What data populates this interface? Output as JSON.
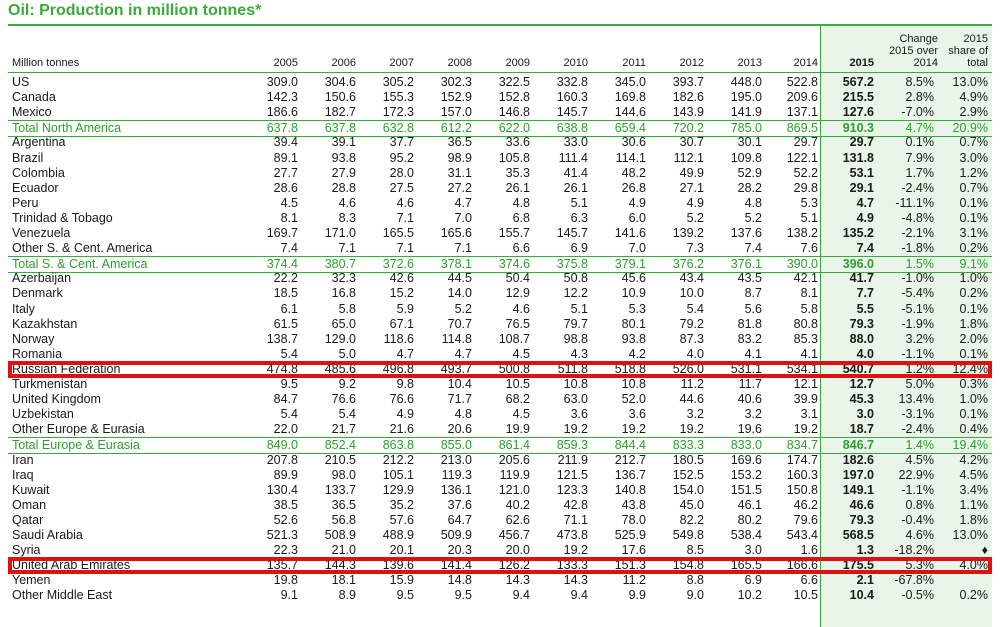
{
  "title": "Oil: Production in million tonnes*",
  "header": {
    "unit": "Million tonnes",
    "years": [
      "2005",
      "2006",
      "2007",
      "2008",
      "2009",
      "2010",
      "2011",
      "2012",
      "2013",
      "2014"
    ],
    "col_2015": "2015",
    "change_label": "Change 2015 over 2014",
    "share_label": "2015 share of total"
  },
  "rows": [
    {
      "name": "US",
      "values": [
        "309.0",
        "304.6",
        "305.2",
        "302.3",
        "322.5",
        "332.8",
        "345.0",
        "393.7",
        "448.0",
        "522.8"
      ],
      "v2015": "567.2",
      "change": "8.5%",
      "share": "13.0%"
    },
    {
      "name": "Canada",
      "values": [
        "142.3",
        "150.6",
        "155.3",
        "152.9",
        "152.8",
        "160.3",
        "169.8",
        "182.6",
        "195.0",
        "209.6"
      ],
      "v2015": "215.5",
      "change": "2.8%",
      "share": "4.9%"
    },
    {
      "name": "Mexico",
      "values": [
        "186.6",
        "182.7",
        "172.3",
        "157.0",
        "146.8",
        "145.7",
        "144.6",
        "143.9",
        "141.9",
        "137.1"
      ],
      "v2015": "127.6",
      "change": "-7.0%",
      "share": "2.9%"
    },
    {
      "name": "Total North America",
      "total": true,
      "values": [
        "637.8",
        "637.8",
        "632.8",
        "612.2",
        "622.0",
        "638.8",
        "659.4",
        "720.2",
        "785.0",
        "869.5"
      ],
      "v2015": "910.3",
      "change": "4.7%",
      "share": "20.9%"
    },
    {
      "name": "Argentina",
      "values": [
        "39.4",
        "39.1",
        "37.7",
        "36.5",
        "33.6",
        "33.0",
        "30.6",
        "30.7",
        "30.1",
        "29.7"
      ],
      "v2015": "29.7",
      "change": "0.1%",
      "share": "0.7%"
    },
    {
      "name": "Brazil",
      "values": [
        "89.1",
        "93.8",
        "95.2",
        "98.9",
        "105.8",
        "111.4",
        "114.1",
        "112.1",
        "109.8",
        "122.1"
      ],
      "v2015": "131.8",
      "change": "7.9%",
      "share": "3.0%"
    },
    {
      "name": "Colombia",
      "values": [
        "27.7",
        "27.9",
        "28.0",
        "31.1",
        "35.3",
        "41.4",
        "48.2",
        "49.9",
        "52.9",
        "52.2"
      ],
      "v2015": "53.1",
      "change": "1.7%",
      "share": "1.2%"
    },
    {
      "name": "Ecuador",
      "values": [
        "28.6",
        "28.8",
        "27.5",
        "27.2",
        "26.1",
        "26.1",
        "26.8",
        "27.1",
        "28.2",
        "29.8"
      ],
      "v2015": "29.1",
      "change": "-2.4%",
      "share": "0.7%"
    },
    {
      "name": "Peru",
      "values": [
        "4.5",
        "4.6",
        "4.6",
        "4.7",
        "4.8",
        "5.1",
        "4.9",
        "4.9",
        "4.8",
        "5.3"
      ],
      "v2015": "4.7",
      "change": "-11.1%",
      "share": "0.1%"
    },
    {
      "name": "Trinidad & Tobago",
      "values": [
        "8.1",
        "8.3",
        "7.1",
        "7.0",
        "6.8",
        "6.3",
        "6.0",
        "5.2",
        "5.2",
        "5.1"
      ],
      "v2015": "4.9",
      "change": "-4.8%",
      "share": "0.1%"
    },
    {
      "name": "Venezuela",
      "values": [
        "169.7",
        "171.0",
        "165.5",
        "165.6",
        "155.7",
        "145.7",
        "141.6",
        "139.2",
        "137.6",
        "138.2"
      ],
      "v2015": "135.2",
      "change": "-2.1%",
      "share": "3.1%"
    },
    {
      "name": "Other S. & Cent. America",
      "values": [
        "7.4",
        "7.1",
        "7.1",
        "7.1",
        "6.6",
        "6.9",
        "7.0",
        "7.3",
        "7.4",
        "7.6"
      ],
      "v2015": "7.4",
      "change": "-1.8%",
      "share": "0.2%"
    },
    {
      "name": "Total S. & Cent. America",
      "total": true,
      "values": [
        "374.4",
        "380.7",
        "372.6",
        "378.1",
        "374.6",
        "375.8",
        "379.1",
        "376.2",
        "376.1",
        "390.0"
      ],
      "v2015": "396.0",
      "change": "1.5%",
      "share": "9.1%"
    },
    {
      "name": "Azerbaijan",
      "values": [
        "22.2",
        "32.3",
        "42.6",
        "44.5",
        "50.4",
        "50.8",
        "45.6",
        "43.4",
        "43.5",
        "42.1"
      ],
      "v2015": "41.7",
      "change": "-1.0%",
      "share": "1.0%"
    },
    {
      "name": "Denmark",
      "values": [
        "18.5",
        "16.8",
        "15.2",
        "14.0",
        "12.9",
        "12.2",
        "10.9",
        "10.0",
        "8.7",
        "8.1"
      ],
      "v2015": "7.7",
      "change": "-5.4%",
      "share": "0.2%"
    },
    {
      "name": "Italy",
      "values": [
        "6.1",
        "5.8",
        "5.9",
        "5.2",
        "4.6",
        "5.1",
        "5.3",
        "5.4",
        "5.6",
        "5.8"
      ],
      "v2015": "5.5",
      "change": "-5.1%",
      "share": "0.1%"
    },
    {
      "name": "Kazakhstan",
      "values": [
        "61.5",
        "65.0",
        "67.1",
        "70.7",
        "76.5",
        "79.7",
        "80.1",
        "79.2",
        "81.8",
        "80.8"
      ],
      "v2015": "79.3",
      "change": "-1.9%",
      "share": "1.8%"
    },
    {
      "name": "Norway",
      "values": [
        "138.7",
        "129.0",
        "118.6",
        "114.8",
        "108.7",
        "98.8",
        "93.8",
        "87.3",
        "83.2",
        "85.3"
      ],
      "v2015": "88.0",
      "change": "3.2%",
      "share": "2.0%"
    },
    {
      "name": "Romania",
      "values": [
        "5.4",
        "5.0",
        "4.7",
        "4.7",
        "4.5",
        "4.3",
        "4.2",
        "4.0",
        "4.1",
        "4.1"
      ],
      "v2015": "4.0",
      "change": "-1.1%",
      "share": "0.1%"
    },
    {
      "name": "Russian Federation",
      "highlight": true,
      "values": [
        "474.8",
        "485.6",
        "496.8",
        "493.7",
        "500.8",
        "511.8",
        "518.8",
        "526.0",
        "531.1",
        "534.1"
      ],
      "v2015": "540.7",
      "change": "1.2%",
      "share": "12.4%"
    },
    {
      "name": "Turkmenistan",
      "values": [
        "9.5",
        "9.2",
        "9.8",
        "10.4",
        "10.5",
        "10.8",
        "10.8",
        "11.2",
        "11.7",
        "12.1"
      ],
      "v2015": "12.7",
      "change": "5.0%",
      "share": "0.3%"
    },
    {
      "name": "United Kingdom",
      "values": [
        "84.7",
        "76.6",
        "76.6",
        "71.7",
        "68.2",
        "63.0",
        "52.0",
        "44.6",
        "40.6",
        "39.9"
      ],
      "v2015": "45.3",
      "change": "13.4%",
      "share": "1.0%"
    },
    {
      "name": "Uzbekistan",
      "values": [
        "5.4",
        "5.4",
        "4.9",
        "4.8",
        "4.5",
        "3.6",
        "3.6",
        "3.2",
        "3.2",
        "3.1"
      ],
      "v2015": "3.0",
      "change": "-3.1%",
      "share": "0.1%"
    },
    {
      "name": "Other Europe & Eurasia",
      "values": [
        "22.0",
        "21.7",
        "21.6",
        "20.6",
        "19.9",
        "19.2",
        "19.2",
        "19.2",
        "19.6",
        "19.2"
      ],
      "v2015": "18.7",
      "change": "-2.4%",
      "share": "0.4%"
    },
    {
      "name": "Total Europe & Eurasia",
      "total": true,
      "values": [
        "849.0",
        "852.4",
        "863.8",
        "855.0",
        "861.4",
        "859.3",
        "844.4",
        "833.3",
        "833.0",
        "834.7"
      ],
      "v2015": "846.7",
      "change": "1.4%",
      "share": "19.4%"
    },
    {
      "name": "Iran",
      "values": [
        "207.8",
        "210.5",
        "212.2",
        "213.0",
        "205.6",
        "211.9",
        "212.7",
        "180.5",
        "169.6",
        "174.7"
      ],
      "v2015": "182.6",
      "change": "4.5%",
      "share": "4.2%"
    },
    {
      "name": "Iraq",
      "values": [
        "89.9",
        "98.0",
        "105.1",
        "119.3",
        "119.9",
        "121.5",
        "136.7",
        "152.5",
        "153.2",
        "160.3"
      ],
      "v2015": "197.0",
      "change": "22.9%",
      "share": "4.5%"
    },
    {
      "name": "Kuwait",
      "values": [
        "130.4",
        "133.7",
        "129.9",
        "136.1",
        "121.0",
        "123.3",
        "140.8",
        "154.0",
        "151.5",
        "150.8"
      ],
      "v2015": "149.1",
      "change": "-1.1%",
      "share": "3.4%"
    },
    {
      "name": "Oman",
      "values": [
        "38.5",
        "36.5",
        "35.2",
        "37.6",
        "40.2",
        "42.8",
        "43.8",
        "45.0",
        "46.1",
        "46.2"
      ],
      "v2015": "46.6",
      "change": "0.8%",
      "share": "1.1%"
    },
    {
      "name": "Qatar",
      "values": [
        "52.6",
        "56.8",
        "57.6",
        "64.7",
        "62.6",
        "71.1",
        "78.0",
        "82.2",
        "80.2",
        "79.6"
      ],
      "v2015": "79.3",
      "change": "-0.4%",
      "share": "1.8%"
    },
    {
      "name": "Saudi Arabia",
      "values": [
        "521.3",
        "508.9",
        "488.9",
        "509.9",
        "456.7",
        "473.8",
        "525.9",
        "549.8",
        "538.4",
        "543.4"
      ],
      "v2015": "568.5",
      "change": "4.6%",
      "share": "13.0%"
    },
    {
      "name": "Syria",
      "values": [
        "22.3",
        "21.0",
        "20.1",
        "20.3",
        "20.0",
        "19.2",
        "17.6",
        "8.5",
        "3.0",
        "1.6"
      ],
      "v2015": "1.3",
      "change": "-18.2%",
      "share": "♦"
    },
    {
      "name": "United Arab Emirates",
      "highlight": true,
      "values": [
        "135.7",
        "144.3",
        "139.6",
        "141.4",
        "126.2",
        "133.3",
        "151.3",
        "154.8",
        "165.5",
        "166.6"
      ],
      "v2015": "175.5",
      "change": "5.3%",
      "share": "4.0%"
    },
    {
      "name": "Yemen",
      "values": [
        "19.8",
        "18.1",
        "15.9",
        "14.8",
        "14.3",
        "14.3",
        "11.2",
        "8.8",
        "6.9",
        "6.6"
      ],
      "v2015": "2.1",
      "change": "-67.8%",
      "share": ""
    },
    {
      "name": "Other Middle East",
      "values": [
        "9.1",
        "8.9",
        "9.5",
        "9.5",
        "9.4",
        "9.4",
        "9.9",
        "9.0",
        "10.2",
        "10.5"
      ],
      "v2015": "10.4",
      "change": "-0.5%",
      "share": "0.2%"
    }
  ],
  "colors": {
    "green": "#3aaa3a",
    "highlight": "#e01010",
    "band": "#e8f5e8"
  }
}
